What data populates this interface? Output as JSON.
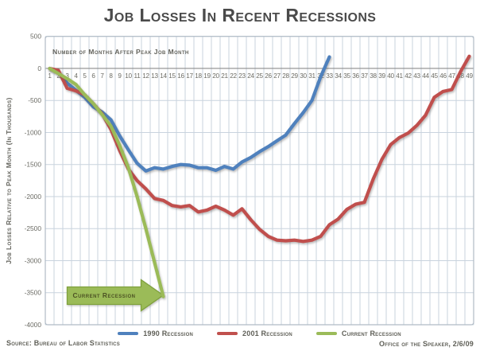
{
  "title": "Job Losses In Recent Recessions",
  "footer": {
    "source": "Source: Bureau of Labor Statistics",
    "credit": "Office of the Speaker, 2/6/09"
  },
  "colors": {
    "grid": "#c9d3de",
    "zero_line": "#8c8c8c",
    "frame": "#b0bac5",
    "title_text": "#4a4a4a",
    "axis_text": "#6b6b64",
    "footer_text": "#5f5f57"
  },
  "chart_data": {
    "type": "line",
    "title": "Job Losses In Recent Recessions",
    "xlabel": "Number of Months After Peak Job Month",
    "ylabel": "Job Losses Relative to Peak Month (In Thousands)",
    "ylim": [
      -4000,
      500
    ],
    "yticks": [
      500,
      0,
      -500,
      -1000,
      -1500,
      -2000,
      -2500,
      -3000,
      -3500,
      -4000
    ],
    "grid": true,
    "legend_position": "bottom",
    "months": [
      1,
      2,
      3,
      4,
      5,
      6,
      7,
      8,
      9,
      10,
      11,
      12,
      13,
      14,
      15,
      16,
      17,
      18,
      19,
      20,
      21,
      22,
      23,
      24,
      25,
      26,
      27,
      28,
      29,
      30,
      31,
      32,
      33,
      34,
      35,
      36,
      37,
      38,
      39,
      40,
      41,
      42,
      43,
      44,
      45,
      46,
      47,
      48,
      49
    ],
    "series": [
      {
        "name": "1990 Recession",
        "color": "#4F81BD",
        "values": [
          0,
          -60,
          -230,
          -340,
          -450,
          -600,
          -680,
          -800,
          -1050,
          -1270,
          -1480,
          -1600,
          -1550,
          -1570,
          -1530,
          -1500,
          -1510,
          -1550,
          -1550,
          -1590,
          -1530,
          -1570,
          -1460,
          -1390,
          -1300,
          -1220,
          -1130,
          -1040,
          -860,
          -690,
          -500,
          -130,
          180
        ]
      },
      {
        "name": "2001 Recession",
        "color": "#C0504D",
        "values": [
          0,
          -30,
          -310,
          -350,
          -410,
          -550,
          -710,
          -950,
          -1280,
          -1570,
          -1750,
          -1880,
          -2030,
          -2060,
          -2140,
          -2160,
          -2140,
          -2240,
          -2210,
          -2150,
          -2210,
          -2290,
          -2190,
          -2360,
          -2510,
          -2620,
          -2680,
          -2690,
          -2680,
          -2700,
          -2680,
          -2620,
          -2440,
          -2350,
          -2200,
          -2120,
          -2090,
          -1730,
          -1420,
          -1190,
          -1080,
          -1010,
          -890,
          -730,
          -450,
          -360,
          -330,
          -50,
          190
        ]
      },
      {
        "name": "Current Recession",
        "color": "#9BBB59",
        "values": [
          0,
          -80,
          -160,
          -250,
          -410,
          -550,
          -720,
          -900,
          -1200,
          -1550,
          -2000,
          -2500,
          -3030,
          -3560
        ]
      }
    ],
    "annotation": {
      "label": "Current Recession",
      "tail_month": 3,
      "tip_month": 14,
      "value": -3540,
      "fill": "#9BBB59",
      "border": "#7fa13e",
      "text_color": "#4c5223"
    }
  }
}
